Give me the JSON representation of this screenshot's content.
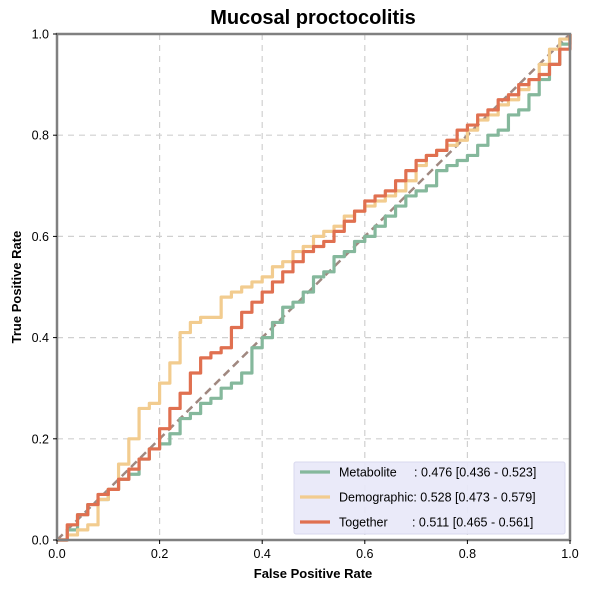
{
  "chart_data": {
    "type": "line",
    "title": "Mucosal proctocolitis",
    "xlabel": "False Positive Rate",
    "ylabel": "True Positive Rate",
    "xlim": [
      0,
      1
    ],
    "ylim": [
      0,
      1
    ],
    "xticks": [
      "0.0",
      "0.2",
      "0.4",
      "0.6",
      "0.8",
      "1.0"
    ],
    "yticks": [
      "0.0",
      "0.2",
      "0.4",
      "0.6",
      "0.8",
      "1.0"
    ],
    "grid": true,
    "legend_position": "bottom-right",
    "diagonal": {
      "color": "#a08880",
      "style": "dashed",
      "x": [
        0,
        1
      ],
      "y": [
        0,
        1
      ]
    },
    "series": [
      {
        "name": "Metabolite",
        "legend_label": "Metabolite     : 0.476 [0.436 - 0.523]",
        "color": "#85b89c",
        "x": [
          0,
          0.02,
          0.04,
          0.06,
          0.08,
          0.1,
          0.12,
          0.14,
          0.16,
          0.18,
          0.2,
          0.22,
          0.24,
          0.26,
          0.28,
          0.3,
          0.32,
          0.34,
          0.36,
          0.38,
          0.4,
          0.42,
          0.44,
          0.46,
          0.48,
          0.5,
          0.52,
          0.54,
          0.56,
          0.58,
          0.6,
          0.62,
          0.64,
          0.66,
          0.68,
          0.7,
          0.72,
          0.74,
          0.76,
          0.78,
          0.8,
          0.82,
          0.84,
          0.86,
          0.88,
          0.9,
          0.92,
          0.94,
          0.96,
          0.98,
          1.0
        ],
        "y": [
          0,
          0.02,
          0.05,
          0.07,
          0.08,
          0.1,
          0.12,
          0.13,
          0.16,
          0.18,
          0.19,
          0.21,
          0.24,
          0.25,
          0.27,
          0.28,
          0.3,
          0.31,
          0.33,
          0.38,
          0.4,
          0.43,
          0.46,
          0.47,
          0.49,
          0.52,
          0.53,
          0.56,
          0.57,
          0.59,
          0.6,
          0.62,
          0.64,
          0.66,
          0.68,
          0.69,
          0.7,
          0.73,
          0.74,
          0.75,
          0.76,
          0.78,
          0.8,
          0.81,
          0.84,
          0.85,
          0.88,
          0.91,
          0.94,
          0.98,
          1.0
        ]
      },
      {
        "name": "Demographic",
        "legend_label": "Demographic: 0.528 [0.473 - 0.579]",
        "color": "#f2cc8f",
        "x": [
          0,
          0.02,
          0.04,
          0.06,
          0.08,
          0.1,
          0.12,
          0.14,
          0.16,
          0.18,
          0.2,
          0.22,
          0.24,
          0.26,
          0.28,
          0.3,
          0.32,
          0.34,
          0.36,
          0.38,
          0.4,
          0.42,
          0.44,
          0.46,
          0.48,
          0.5,
          0.52,
          0.54,
          0.56,
          0.58,
          0.6,
          0.62,
          0.64,
          0.66,
          0.68,
          0.7,
          0.72,
          0.74,
          0.76,
          0.78,
          0.8,
          0.82,
          0.84,
          0.86,
          0.88,
          0.9,
          0.92,
          0.94,
          0.96,
          0.98,
          1.0
        ],
        "y": [
          0,
          0.01,
          0.02,
          0.03,
          0.08,
          0.1,
          0.15,
          0.2,
          0.26,
          0.27,
          0.31,
          0.35,
          0.41,
          0.43,
          0.44,
          0.44,
          0.48,
          0.49,
          0.5,
          0.51,
          0.52,
          0.54,
          0.55,
          0.57,
          0.58,
          0.6,
          0.61,
          0.62,
          0.64,
          0.65,
          0.66,
          0.67,
          0.68,
          0.69,
          0.71,
          0.74,
          0.76,
          0.77,
          0.78,
          0.79,
          0.81,
          0.83,
          0.84,
          0.86,
          0.87,
          0.89,
          0.91,
          0.94,
          0.97,
          0.99,
          1.0
        ]
      },
      {
        "name": "Together",
        "legend_label": "Together       : 0.511 [0.465 - 0.561]",
        "color": "#e07050",
        "x": [
          0,
          0.02,
          0.04,
          0.06,
          0.08,
          0.1,
          0.12,
          0.14,
          0.16,
          0.18,
          0.2,
          0.22,
          0.24,
          0.26,
          0.28,
          0.3,
          0.32,
          0.34,
          0.36,
          0.38,
          0.4,
          0.42,
          0.44,
          0.46,
          0.48,
          0.5,
          0.52,
          0.54,
          0.56,
          0.58,
          0.6,
          0.62,
          0.64,
          0.66,
          0.68,
          0.7,
          0.72,
          0.74,
          0.76,
          0.78,
          0.8,
          0.82,
          0.84,
          0.86,
          0.88,
          0.9,
          0.92,
          0.94,
          0.96,
          0.98,
          1.0
        ],
        "y": [
          0,
          0.03,
          0.05,
          0.07,
          0.09,
          0.1,
          0.12,
          0.14,
          0.16,
          0.18,
          0.22,
          0.26,
          0.29,
          0.33,
          0.36,
          0.37,
          0.38,
          0.42,
          0.45,
          0.47,
          0.49,
          0.51,
          0.53,
          0.55,
          0.57,
          0.58,
          0.59,
          0.61,
          0.63,
          0.65,
          0.67,
          0.68,
          0.69,
          0.71,
          0.73,
          0.75,
          0.76,
          0.77,
          0.79,
          0.81,
          0.82,
          0.84,
          0.85,
          0.87,
          0.88,
          0.9,
          0.91,
          0.92,
          0.94,
          0.97,
          1.0
        ]
      }
    ]
  }
}
